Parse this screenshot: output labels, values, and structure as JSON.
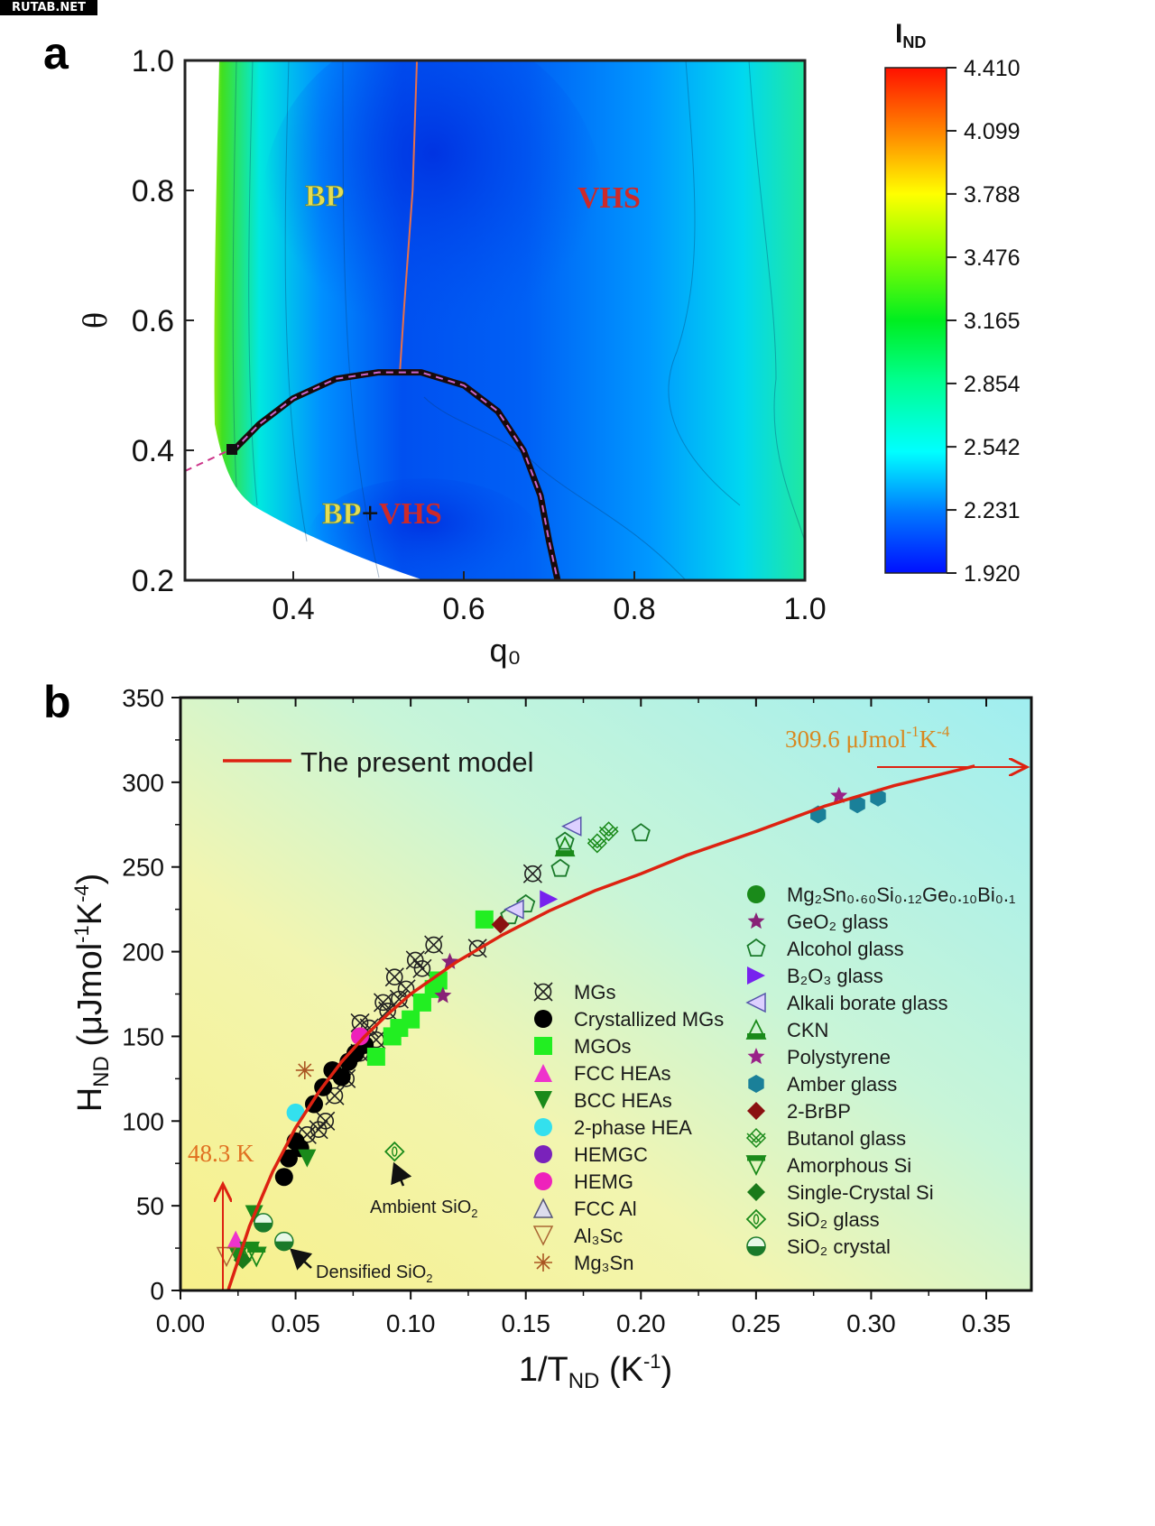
{
  "watermark": "RUTAB.NET",
  "chart_data": [
    {
      "panel": "a",
      "type": "heatmap",
      "xlabel": "q₀",
      "ylabel": "θ",
      "xlim": [
        0.28,
        1.0
      ],
      "ylim": [
        0.2,
        1.0
      ],
      "x_ticks": [
        "0.4",
        "0.6",
        "0.8",
        "1.0"
      ],
      "y_ticks": [
        "0.2",
        "0.4",
        "0.6",
        "0.8",
        "1.0"
      ],
      "colorbar": {
        "label": "I",
        "label_sub": "ND",
        "min": 1.92,
        "max": 4.41,
        "ticks": [
          "4.410",
          "4.099",
          "3.788",
          "3.476",
          "3.165",
          "2.854",
          "2.542",
          "2.231",
          "1.920"
        ],
        "colormap": [
          "#0000ff",
          "#0080ff",
          "#00ffff",
          "#00ff80",
          "#00ff00",
          "#80ff00",
          "#ffff00",
          "#ff8000",
          "#ff0000"
        ]
      },
      "region_labels": [
        {
          "text": "BP",
          "q0": 0.47,
          "theta": 0.79,
          "color": "#e8e060"
        },
        {
          "text": "VHS",
          "q0": 0.77,
          "theta": 0.79,
          "color": "#cc2222"
        },
        {
          "text_a": "BP",
          "text_b": "+",
          "text_c": "VHS",
          "q0": 0.55,
          "theta": 0.3
        }
      ],
      "phase_boundary": {
        "description": "BP / BP+VHS boundary (black squares, dashed fit)",
        "q0": [
          0.33,
          0.36,
          0.4,
          0.45,
          0.5,
          0.55,
          0.6,
          0.64,
          0.67,
          0.69,
          0.7,
          0.71
        ],
        "theta": [
          0.4,
          0.44,
          0.48,
          0.51,
          0.52,
          0.52,
          0.5,
          0.46,
          0.4,
          0.33,
          0.26,
          0.2
        ]
      },
      "vhs_line": {
        "description": "BP / VHS boundary (orange line)",
        "q0": [
          0.545,
          0.54,
          0.53,
          0.525
        ],
        "theta": [
          1.0,
          0.8,
          0.62,
          0.52
        ]
      }
    },
    {
      "panel": "b",
      "type": "scatter",
      "title": "",
      "xlabel": "1/T",
      "xlabel_sub": "ND",
      "xlabel_unit": " (K",
      "xlabel_sup": "-1",
      "xlabel_close": ")",
      "ylabel": "H",
      "ylabel_sub": "ND",
      "ylabel_unit": " (μJmol",
      "ylabel_sup1": "-1",
      "ylabel_mid": "K",
      "ylabel_sup2": "-4",
      "ylabel_close": ")",
      "xlim": [
        0.0,
        0.35
      ],
      "ylim": [
        0,
        350
      ],
      "x_ticks": [
        "0.00",
        "0.05",
        "0.10",
        "0.15",
        "0.20",
        "0.25",
        "0.30",
        "0.35"
      ],
      "y_ticks": [
        "0",
        "50",
        "100",
        "150",
        "200",
        "250",
        "300",
        "350"
      ],
      "grid": false,
      "model_line": {
        "name": "The present  model",
        "color": "#dd2211",
        "x": [
          0.0207,
          0.03,
          0.04,
          0.05,
          0.06,
          0.07,
          0.08,
          0.09,
          0.1,
          0.12,
          0.14,
          0.16,
          0.18,
          0.2,
          0.22,
          0.25,
          0.28,
          0.31,
          0.345
        ],
        "y": [
          0,
          38,
          70,
          96,
          117,
          135,
          150,
          163,
          175,
          194,
          210,
          224,
          236,
          246,
          257,
          271,
          286,
          298,
          309.6
        ]
      },
      "annotations": [
        {
          "text": "309.6 μJmol",
          "sup1": "-1",
          "mid": "K",
          "sup2": "-4",
          "x": 0.29,
          "y": 325,
          "color": "#d88820"
        },
        {
          "text": "48.3 K",
          "x": 0.003,
          "y": 85,
          "color": "#e07020"
        },
        {
          "text": "Ambient SiO",
          "sub": "2",
          "x": 0.085,
          "y": 48
        },
        {
          "text": "Densified SiO",
          "sub": "2",
          "x": 0.058,
          "y": 10
        }
      ],
      "legend_left": [
        {
          "label": "MGs",
          "marker": "circle-x",
          "color": "#222222"
        },
        {
          "label": "Crystallized MGs",
          "marker": "circle",
          "color": "#000000"
        },
        {
          "label": "MGOs",
          "marker": "square",
          "color": "#22ee22"
        },
        {
          "label": "FCC HEAs",
          "marker": "triangle-up",
          "color": "#ee33cc"
        },
        {
          "label": "BCC HEAs",
          "marker": "triangle-down",
          "color": "#1a8a1a"
        },
        {
          "label": "2-phase HEA",
          "marker": "circle",
          "color": "#33e0ee"
        },
        {
          "label": "HEMGC",
          "marker": "circle",
          "color": "#7a22bb"
        },
        {
          "label": "HEMG",
          "marker": "circle",
          "color": "#ee22bb"
        },
        {
          "label": "FCC Al",
          "marker": "triangle-up-open",
          "color": "#555577"
        },
        {
          "label": "Al₃Sc",
          "marker": "triangle-down-open",
          "color": "#aa6633"
        },
        {
          "label": "Mg₃Sn",
          "marker": "asterisk",
          "color": "#aa5522"
        }
      ],
      "legend_right": [
        {
          "label": "Mg₂Sn₀.₆₀Si₀.₁₂Ge₀.₁₀Bi₀.₁",
          "marker": "circle",
          "color": "#1a8a1a"
        },
        {
          "label": "GeO₂ glass",
          "marker": "star",
          "color": "#882277"
        },
        {
          "label": "Alcohol glass",
          "marker": "pentagon-open",
          "color": "#1a7a2a"
        },
        {
          "label": "B₂O₃ glass",
          "marker": "triangle-right",
          "color": "#7722ee"
        },
        {
          "label": "Alkali borate glass",
          "marker": "triangle-left-open",
          "color": "#5555aa"
        },
        {
          "label": "CKN",
          "marker": "triangle-up-half",
          "color": "#1a8a1a"
        },
        {
          "label": "Polystyrene",
          "marker": "star",
          "color": "#992288"
        },
        {
          "label": "Amber glass",
          "marker": "hexagon",
          "color": "#1a8099"
        },
        {
          "label": "2-BrBP",
          "marker": "diamond",
          "color": "#8a1111"
        },
        {
          "label": "Butanol glass",
          "marker": "cross-hatch",
          "color": "#1a8a1a"
        },
        {
          "label": "Amorphous Si",
          "marker": "triangle-down-half",
          "color": "#1a8a1a"
        },
        {
          "label": "Single-Crystal Si",
          "marker": "diamond",
          "color": "#1a7a1a"
        },
        {
          "label": "SiO₂ glass",
          "marker": "diamond-open",
          "color": "#1a8a1a"
        },
        {
          "label": "SiO₂ crystal",
          "marker": "circle-half",
          "color": "#1a7a2a"
        }
      ],
      "series": [
        {
          "name": "MGs",
          "x": [
            0.055,
            0.06,
            0.063,
            0.067,
            0.072,
            0.078,
            0.082,
            0.088,
            0.09,
            0.093,
            0.098,
            0.102,
            0.105,
            0.11,
            0.129,
            0.153,
            0.078,
            0.085,
            0.095
          ],
          "y": [
            92,
            95,
            100,
            115,
            125,
            140,
            155,
            170,
            165,
            185,
            178,
            195,
            190,
            204,
            202,
            246,
            158,
            148,
            172
          ]
        },
        {
          "name": "Crystallized MGs",
          "x": [
            0.045,
            0.047,
            0.05,
            0.052,
            0.058,
            0.062,
            0.066,
            0.07,
            0.073,
            0.076,
            0.08
          ],
          "y": [
            67,
            78,
            88,
            84,
            110,
            120,
            130,
            126,
            135,
            140,
            145
          ]
        },
        {
          "name": "MGOs",
          "x": [
            0.085,
            0.092,
            0.095,
            0.1,
            0.105,
            0.11,
            0.112,
            0.132
          ],
          "y": [
            138,
            150,
            155,
            160,
            170,
            178,
            183,
            219
          ]
        },
        {
          "name": "FCC HEAs",
          "x": [
            0.024
          ],
          "y": [
            30
          ]
        },
        {
          "name": "BCC HEAs",
          "x": [
            0.055,
            0.032,
            0.025
          ],
          "y": [
            78,
            45,
            20
          ]
        },
        {
          "name": "2-phase HEA",
          "x": [
            0.05
          ],
          "y": [
            105
          ]
        },
        {
          "name": "HEMG",
          "x": [
            0.078
          ],
          "y": [
            150
          ]
        },
        {
          "name": "Al₃Sc",
          "x": [
            0.02
          ],
          "y": [
            20
          ]
        },
        {
          "name": "Mg₃Sn",
          "x": [
            0.054
          ],
          "y": [
            130
          ]
        },
        {
          "name": "GeO₂ glass",
          "x": [
            0.114,
            0.117
          ],
          "y": [
            174,
            194
          ]
        },
        {
          "name": "Polystyrene",
          "x": [
            0.286
          ],
          "y": [
            292
          ]
        },
        {
          "name": "Alcohol glass",
          "x": [
            0.143,
            0.15,
            0.165,
            0.167,
            0.2
          ],
          "y": [
            221,
            228,
            249,
            265,
            270
          ]
        },
        {
          "name": "B₂O₃ glass",
          "x": [
            0.16
          ],
          "y": [
            231
          ]
        },
        {
          "name": "Alkali borate glass",
          "x": [
            0.145,
            0.17
          ],
          "y": [
            225,
            274
          ]
        },
        {
          "name": "CKN",
          "x": [
            0.167
          ],
          "y": [
            262
          ]
        },
        {
          "name": "Amber glass",
          "x": [
            0.277,
            0.294,
            0.303
          ],
          "y": [
            281,
            287,
            291
          ]
        },
        {
          "name": "2-BrBP",
          "x": [
            0.139
          ],
          "y": [
            216
          ]
        },
        {
          "name": "Butanol glass",
          "x": [
            0.181,
            0.186
          ],
          "y": [
            264,
            271
          ]
        },
        {
          "name": "Amorphous Si",
          "x": [
            0.03,
            0.033
          ],
          "y": [
            23,
            20
          ]
        },
        {
          "name": "Single-Crystal Si",
          "x": [
            0.027
          ],
          "y": [
            18
          ]
        },
        {
          "name": "SiO₂ glass",
          "x": [
            0.093
          ],
          "y": [
            82
          ]
        },
        {
          "name": "SiO₂ crystal",
          "x": [
            0.045,
            0.036
          ],
          "y": [
            29,
            40
          ]
        }
      ]
    }
  ]
}
